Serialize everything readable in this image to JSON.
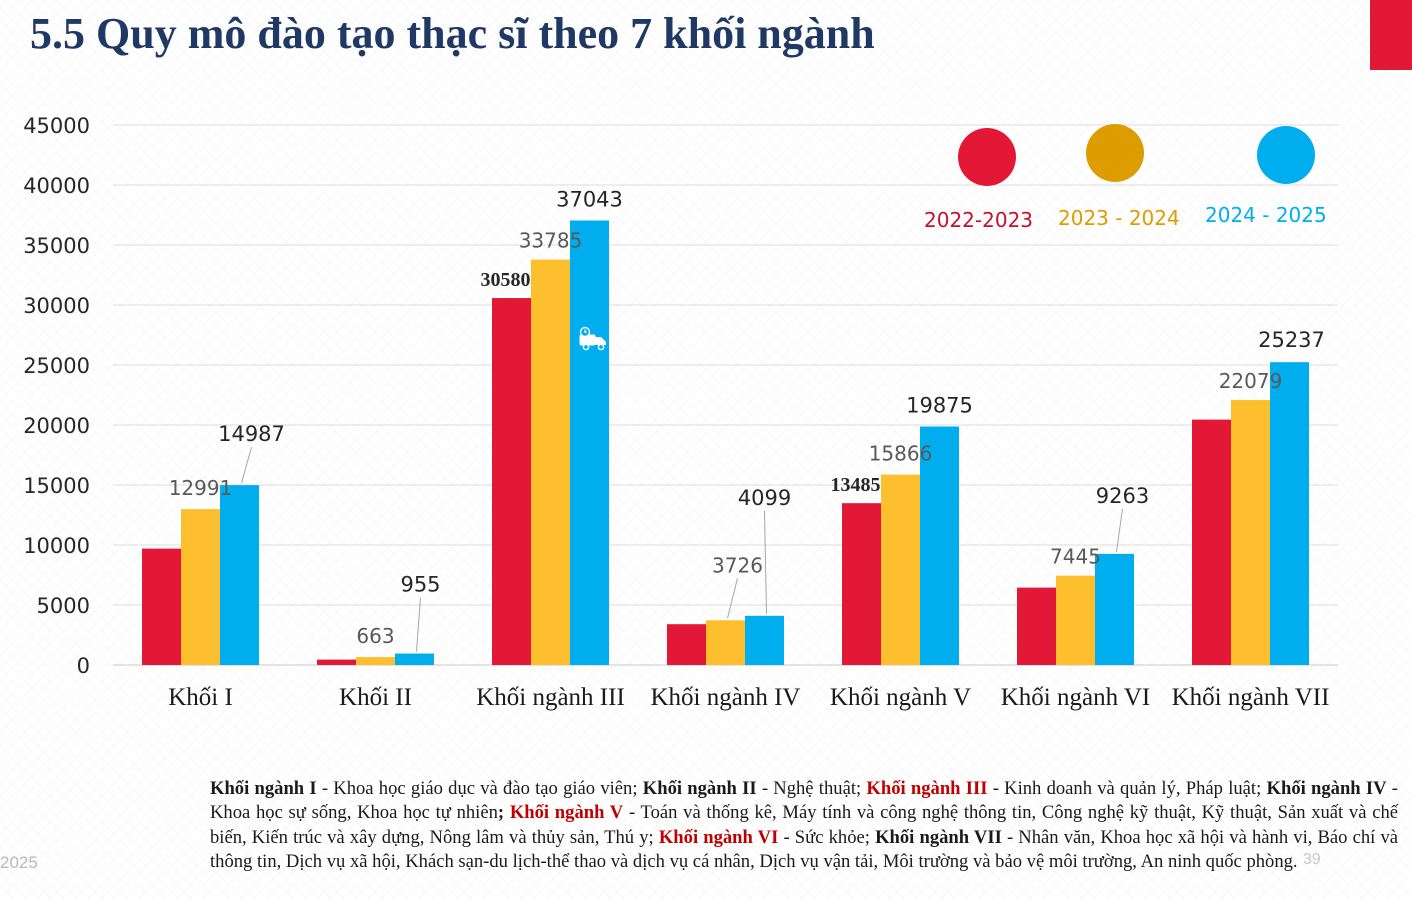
{
  "slide": {
    "title": "5.5 Quy mô đào tạo thạc sĩ theo 7 khối ngành",
    "footer_year": "2025",
    "page_number": "39"
  },
  "colors": {
    "title": "#1f3864",
    "corner_accent": "#e31837",
    "series": [
      "#e31837",
      "#fdbf2d",
      "#00aeef"
    ],
    "legend_markers": [
      "#e31837",
      "#dd9c00",
      "#00aeef"
    ],
    "legend_text": [
      "#c8102e",
      "#dd9c00",
      "#00aeef"
    ]
  },
  "chart_data": {
    "type": "bar",
    "categories": [
      "Khối I",
      "Khối II",
      "Khối ngành III",
      "Khối ngành IV",
      "Khối ngành V",
      "Khối ngành VI",
      "Khối ngành VII"
    ],
    "series": [
      {
        "name": "2022-2023",
        "values": [
          9700,
          450,
          30580,
          3400,
          13485,
          6450,
          20450
        ]
      },
      {
        "name": "2023 - 2024",
        "values": [
          12991,
          663,
          33785,
          3726,
          15866,
          7445,
          22079
        ]
      },
      {
        "name": "2024 - 2025",
        "values": [
          14987,
          955,
          37043,
          4099,
          19875,
          9263,
          25237
        ]
      }
    ],
    "data_labels": [
      [
        null,
        null,
        "30580",
        null,
        "13485",
        null,
        null
      ],
      [
        "12991",
        "663",
        "33785",
        "3726",
        "15866",
        "7445",
        "22079"
      ],
      [
        "14987",
        "955",
        "37043",
        "4099",
        "19875",
        "9263",
        "25237"
      ]
    ],
    "y_ticks": [
      "0",
      "5000",
      "10000",
      "15000",
      "20000",
      "25000",
      "30000",
      "35000",
      "40000",
      "45000"
    ],
    "ylim": [
      0,
      45000
    ],
    "grid": true,
    "legend": {
      "position": "top-right",
      "entries": [
        "2022-2023",
        "2023 - 2024",
        "2024 - 2025"
      ]
    },
    "title": "",
    "xlabel": "",
    "ylabel": ""
  },
  "footnote": [
    {
      "text": "Khối ngành I",
      "style": "bold"
    },
    {
      "text": " - Khoa học giáo dục và đào tạo giáo viên; ",
      "style": "normal"
    },
    {
      "text": "Khối ngành II",
      "style": "bold"
    },
    {
      "text": " - Nghệ thuật; ",
      "style": "normal"
    },
    {
      "text": "Khối ngành III",
      "style": "bold-red"
    },
    {
      "text": " - Kinh doanh và quản lý, Pháp luật; ",
      "style": "normal"
    },
    {
      "text": "Khối ngành IV",
      "style": "bold"
    },
    {
      "text": " - Khoa học sự sống, Khoa học tự nhiên",
      "style": "normal"
    },
    {
      "text": "; ",
      "style": "bold"
    },
    {
      "text": "Khối ngành V",
      "style": "bold-red"
    },
    {
      "text": " - Toán và thống kê, Máy tính và công nghệ thông tin, Công nghệ kỹ thuật, Kỹ thuật, Sản xuất và chế biến, Kiến trúc và xây dựng, Nông lâm và thủy sản, Thú y; ",
      "style": "normal"
    },
    {
      "text": "Khối ngành VI",
      "style": "bold-red"
    },
    {
      "text": " - Sức khỏe; ",
      "style": "normal"
    },
    {
      "text": "Khối ngành VII",
      "style": "bold"
    },
    {
      "text": " - Nhân văn, Khoa học xã hội và hành vi, Báo chí và thông tin, Dịch vụ xã hội, Khách sạn-du lịch-thể thao và dịch vụ cá nhân, Dịch vụ vận tải, Môi trường và bảo vệ môi trường, An ninh quốc phòng.",
      "style": "normal"
    }
  ],
  "icons": {
    "chart_overlay": "delivery-truck-icon"
  }
}
